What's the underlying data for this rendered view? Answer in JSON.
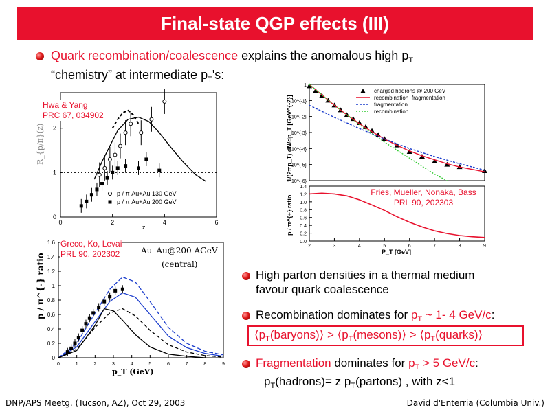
{
  "slide": {
    "title": "Final-state QGP effects (III)",
    "bullet1": {
      "highlight": "Quark recombination/coalescence",
      "rest": " explains the anomalous high p",
      "sub1": "T",
      "line2a": "“chemistry” at intermediate p",
      "sub2": "T",
      "line2b": "'s:"
    },
    "bullet2": {
      "line1": "High parton densities in a thermal medium",
      "line2": "favour quark coalescence"
    },
    "bullet3": {
      "pre": "Recombination dominates for ",
      "pt": "p",
      "ptsub": "T",
      "range": " ~ 1- 4 GeV/c",
      "colon": ":"
    },
    "boxed": {
      "a": "⟨p",
      "asub": "T",
      "b": "(baryons)⟩ > ⟨p",
      "bsub": "T",
      "c": "(mesons)⟩ > ⟨p",
      "csub": "T",
      "d": "(quarks)⟩"
    },
    "bullet4": {
      "pre": "Fragmentation",
      "mid": " dominates for ",
      "pt": "p",
      "ptsub": "T",
      "range": " > 5 GeV/c",
      "colon": ":",
      "sub_a": "p",
      "sub_asub": "T",
      "sub_b": "(hadrons)= z p",
      "sub_bsub": "T",
      "sub_c": "(partons) , with z<1"
    },
    "footer_left": "DNP/APS Meetg. (Tucson, AZ), Oct 29, 2003",
    "footer_right": "David d'Enterria (Columbia Univ.)"
  },
  "citations": {
    "hwa": {
      "l1": "Hwa & Yang",
      "l2": "PRC 67, 034902"
    },
    "greco": {
      "l1": "Greco, Ko, Levai",
      "l2": "PRL 90, 202302"
    },
    "fries": {
      "l1": "Fries, Mueller, Nonaka, Bass",
      "l2": "PRL 90, 202303"
    }
  },
  "colors": {
    "banner": "#e8112d",
    "accent": "#e8112d"
  },
  "chart_data": [
    {
      "type": "scatter",
      "panel": "hwa-yang",
      "ylabel": "R_{p/π}(z)",
      "xlim": [
        0,
        6
      ],
      "ylim": [
        0,
        2.8
      ],
      "x_ticks": [
        "0",
        "2",
        "4",
        "6"
      ],
      "y_ticks": [
        "0",
        "1",
        "2"
      ],
      "legend": [
        "p / π Au+Au 130 GeV",
        "p / π Au+Au 200 GeV"
      ],
      "curve": {
        "x": [
          1.3,
          1.6,
          1.9,
          2.2,
          2.6,
          3.0,
          3.4,
          3.8,
          4.2,
          4.7,
          5.2,
          5.6
        ],
        "y": [
          0.85,
          1.25,
          1.6,
          1.95,
          2.2,
          2.25,
          2.15,
          1.9,
          1.6,
          1.25,
          0.95,
          0.8
        ]
      },
      "dashed_curve": {
        "x": [
          2.0,
          2.2,
          2.4,
          2.6,
          2.8,
          3.0
        ],
        "y": [
          2.0,
          2.2,
          2.35,
          2.4,
          2.3,
          2.1
        ]
      },
      "reference_y": 1.0,
      "series_filled": {
        "x": [
          0.8,
          1.0,
          1.2,
          1.4,
          1.6,
          1.8,
          2.0,
          2.2,
          2.5,
          3.0,
          3.3,
          3.8
        ],
        "y": [
          0.25,
          0.35,
          0.5,
          0.62,
          0.75,
          0.88,
          1.0,
          1.1,
          1.15,
          1.1,
          1.3,
          1.05
        ]
      },
      "series_open": {
        "x": [
          1.5,
          1.7,
          1.9,
          2.1,
          2.3,
          2.5,
          2.7,
          3.1,
          3.5,
          4.0
        ],
        "y": [
          0.95,
          1.1,
          1.3,
          1.4,
          1.6,
          1.9,
          2.1,
          1.9,
          2.2,
          2.6
        ]
      }
    },
    {
      "type": "line",
      "panel": "fries-spectrum",
      "ylabel": "1/(2πp_T) dN/dp_T [GeV^{-2}]",
      "ylog": true,
      "xlim": [
        2,
        9
      ],
      "ylim_exp": [
        -6,
        0
      ],
      "y_ticks": [
        "1",
        "10^{-1}",
        "10^{-2}",
        "10^{-3}",
        "10^{-4}",
        "10^{-5}",
        "10^{-6}"
      ],
      "legend": [
        "charged hadrons @ 200 GeV",
        "recombination+fragmentation",
        "fragmentation",
        "recombination"
      ],
      "series": [
        {
          "name": "charged hadrons @ 200 GeV",
          "x": [
            2.0,
            2.25,
            2.5,
            2.75,
            3.0,
            3.25,
            3.5,
            3.75,
            4.0,
            4.25,
            4.5,
            4.75,
            5.0,
            5.5,
            6.0,
            6.5,
            7.0,
            7.5,
            8.0,
            9.0
          ],
          "logy": [
            -0.1,
            -0.4,
            -0.7,
            -1.0,
            -1.3,
            -1.6,
            -1.9,
            -2.15,
            -2.4,
            -2.65,
            -2.9,
            -3.15,
            -3.4,
            -3.8,
            -4.2,
            -4.5,
            -4.8,
            -5.0,
            -5.15,
            -5.4
          ]
        },
        {
          "name": "recombination+fragmentation",
          "x": [
            2.0,
            2.5,
            3.0,
            3.5,
            4.0,
            4.5,
            5.0,
            5.5,
            6.0,
            6.5,
            7.0,
            7.5,
            8.0,
            8.5,
            9.0
          ],
          "logy": [
            0.0,
            -0.65,
            -1.3,
            -1.9,
            -2.45,
            -2.95,
            -3.4,
            -3.8,
            -4.15,
            -4.45,
            -4.7,
            -4.95,
            -5.15,
            -5.3,
            -5.45
          ]
        },
        {
          "name": "fragmentation",
          "x": [
            2.0,
            3.0,
            4.0,
            5.0,
            6.0,
            7.0,
            8.0,
            9.0
          ],
          "logy": [
            -1.3,
            -2.05,
            -2.75,
            -3.4,
            -4.0,
            -4.5,
            -4.95,
            -5.35
          ]
        },
        {
          "name": "recombination",
          "x": [
            2.0,
            3.0,
            4.0,
            5.0,
            5.5,
            6.0,
            6.5,
            7.0,
            7.5
          ],
          "logy": [
            0.0,
            -1.3,
            -2.5,
            -3.6,
            -4.1,
            -4.6,
            -5.1,
            -5.6,
            -6.0
          ]
        }
      ]
    },
    {
      "type": "line",
      "panel": "fries-ratio",
      "ylabel": "p / π^{+} ratio",
      "xlabel": "P_T [GeV]",
      "xlim": [
        2,
        9
      ],
      "ylim": [
        0,
        1.4
      ],
      "x_ticks": [
        "2",
        "3",
        "4",
        "5",
        "6",
        "7",
        "8",
        "9"
      ],
      "y_ticks": [
        "0.0",
        "0.2",
        "0.4",
        "0.6",
        "0.8",
        "1.0",
        "1.2",
        "1.4"
      ],
      "series": [
        {
          "name": "",
          "x": [
            2.0,
            2.5,
            3.0,
            3.5,
            4.0,
            4.5,
            5.0,
            5.5,
            6.0,
            6.5,
            7.0,
            7.5,
            8.0,
            8.5,
            9.0
          ],
          "y": [
            1.2,
            1.22,
            1.2,
            1.15,
            1.05,
            0.92,
            0.78,
            0.62,
            0.48,
            0.36,
            0.26,
            0.19,
            0.14,
            0.11,
            0.09
          ]
        }
      ]
    },
    {
      "type": "line",
      "panel": "greco-ratio",
      "ylabel": "p / π^{-} ratio",
      "xlabel": "p_T (GeV)",
      "annotation_1": "Au–Au@200 AGeV",
      "annotation_2": "(central)",
      "xlim": [
        0,
        9
      ],
      "ylim": [
        0,
        1.6
      ],
      "x_ticks": [
        "0",
        "1",
        "2",
        "3",
        "4",
        "5",
        "6",
        "7",
        "8",
        "9"
      ],
      "y_ticks": [
        "0",
        "0.2",
        "0.4",
        "0.6",
        "0.8",
        "1",
        "1.2",
        "1.4",
        "1.6"
      ],
      "data": {
        "x": [
          0.5,
          0.7,
          0.9,
          1.1,
          1.3,
          1.5,
          1.7,
          1.9,
          2.2,
          2.5,
          2.8,
          3.1,
          3.5
        ],
        "y": [
          0.08,
          0.13,
          0.2,
          0.28,
          0.38,
          0.47,
          0.55,
          0.62,
          0.7,
          0.78,
          0.85,
          0.93,
          0.95
        ]
      },
      "curves": [
        {
          "x": [
            0,
            1,
            2,
            2.8,
            3.5,
            4.2,
            5,
            6,
            7,
            8,
            9
          ],
          "y": [
            0,
            0.2,
            0.62,
            0.95,
            1.12,
            1.05,
            0.78,
            0.42,
            0.2,
            0.09,
            0.04
          ],
          "style": "blue-dash"
        },
        {
          "x": [
            0,
            1,
            2,
            2.8,
            3.5,
            4.2,
            5,
            6,
            7,
            8,
            9
          ],
          "y": [
            0,
            0.15,
            0.5,
            0.78,
            0.9,
            0.84,
            0.6,
            0.3,
            0.14,
            0.06,
            0.02
          ],
          "style": "blue"
        },
        {
          "x": [
            0,
            1,
            2,
            2.8,
            3.5,
            4.2,
            5,
            6,
            7,
            8,
            9
          ],
          "y": [
            0,
            0.12,
            0.42,
            0.62,
            0.68,
            0.58,
            0.38,
            0.18,
            0.08,
            0.03,
            0.01
          ],
          "style": "black-dash"
        },
        {
          "x": [
            0,
            1,
            2,
            2.5,
            3,
            3.5,
            4.2,
            5,
            6,
            7,
            8
          ],
          "y": [
            0,
            0.1,
            0.45,
            0.68,
            0.65,
            0.52,
            0.32,
            0.15,
            0.05,
            0.02,
            0.0
          ],
          "style": "black"
        }
      ]
    }
  ]
}
